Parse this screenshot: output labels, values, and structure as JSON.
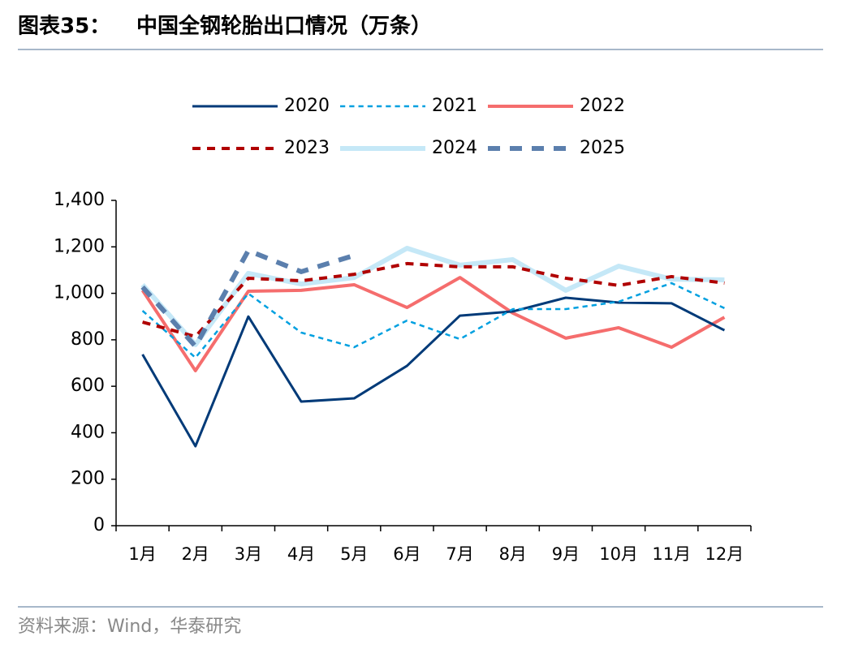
{
  "chart_data": {
    "type": "line",
    "label": "图表35：",
    "title": "中国全钢轮胎出口情况（万条）",
    "source": "资料来源：Wind，华泰研究",
    "categories": [
      "1月",
      "2月",
      "3月",
      "4月",
      "5月",
      "6月",
      "7月",
      "8月",
      "9月",
      "10月",
      "11月",
      "12月"
    ],
    "ylim": [
      0,
      1400
    ],
    "yticks": [
      0,
      200,
      400,
      600,
      800,
      {
        "value": 1000,
        "label": "1,000"
      },
      {
        "value": 1200,
        "label": "1,200"
      },
      {
        "value": 1400,
        "label": "1,400"
      }
    ],
    "series": [
      {
        "name": "2020",
        "color": "#003a78",
        "width": 3,
        "dash": false,
        "values": [
          737,
          342,
          900,
          534,
          548,
          688,
          904,
          922,
          981,
          960,
          957,
          841
        ]
      },
      {
        "name": "2021",
        "color": "#00a0e0",
        "width": 2.5,
        "dash": true,
        "values": [
          925,
          723,
          999,
          831,
          768,
          883,
          803,
          932,
          932,
          964,
          1044,
          936
        ]
      },
      {
        "name": "2022",
        "color": "#f56d6d",
        "width": 4,
        "dash": false,
        "values": [
          1013,
          667,
          1009,
          1013,
          1037,
          939,
          1068,
          915,
          807,
          852,
          768,
          897
        ]
      },
      {
        "name": "2023",
        "color": "#b00000",
        "width": 4,
        "dash": true,
        "values": [
          876,
          814,
          1065,
          1054,
          1082,
          1128,
          1114,
          1114,
          1065,
          1034,
          1072,
          1044
        ]
      },
      {
        "name": "2024",
        "color": "#c5e8f7",
        "width": 6,
        "dash": false,
        "values": [
          1037,
          779,
          1086,
          1040,
          1068,
          1194,
          1121,
          1145,
          1013,
          1117,
          1061,
          1058
        ]
      },
      {
        "name": "2025",
        "color": "#5b7fad",
        "width": 6,
        "dash": true,
        "values": [
          1027,
          772,
          1184,
          1093,
          1163,
          null,
          null,
          null,
          null,
          null,
          null,
          null
        ]
      }
    ]
  }
}
